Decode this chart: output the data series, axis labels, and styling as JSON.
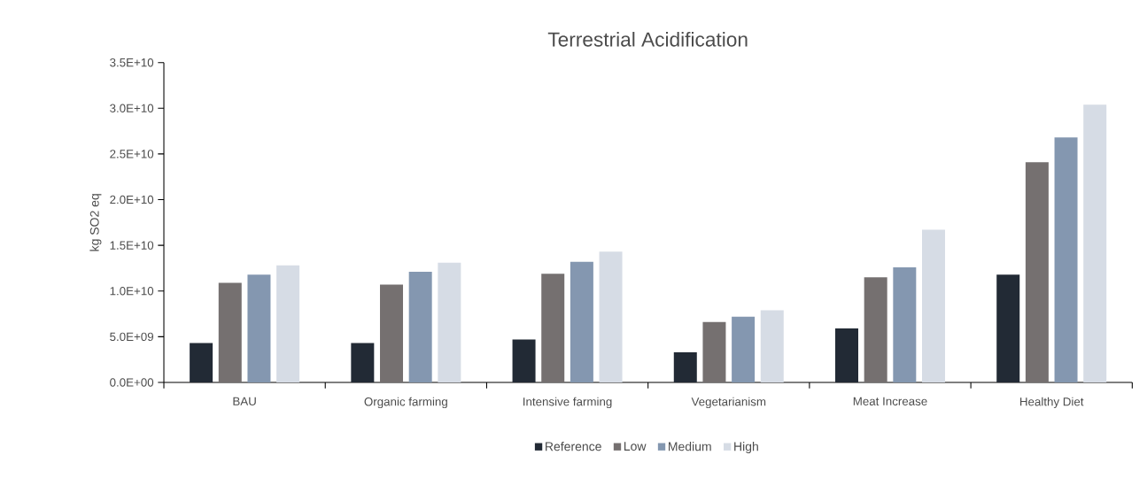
{
  "chart_data": {
    "type": "bar",
    "title": "Terrestrial Acidification",
    "ylabel": "kg SO2 eq",
    "categories": [
      "BAU",
      "Organic farming",
      "Intensive farming",
      "Vegetarianism",
      "Meat Increase",
      "Healthy Diet"
    ],
    "series": [
      {
        "name": "Reference",
        "color": "#222a35",
        "values": [
          4300000000.0,
          4300000000.0,
          4700000000.0,
          3300000000.0,
          5900000000.0,
          11800000000.0
        ]
      },
      {
        "name": "Low",
        "color": "#757070",
        "values": [
          10900000000.0,
          10700000000.0,
          11900000000.0,
          6600000000.0,
          11500000000.0,
          24100000000.0
        ]
      },
      {
        "name": "Medium",
        "color": "#8497b0",
        "values": [
          11800000000.0,
          12100000000.0,
          13200000000.0,
          7200000000.0,
          12600000000.0,
          26800000000.0
        ]
      },
      {
        "name": "High",
        "color": "#d6dce5",
        "values": [
          12800000000.0,
          13100000000.0,
          14300000000.0,
          7900000000.0,
          16700000000.0,
          30400000000.0
        ]
      }
    ],
    "ylim": [
      0,
      35000000000.0
    ],
    "yticks": [
      {
        "value": 0,
        "label": "0.0E+00"
      },
      {
        "value": 5000000000.0,
        "label": "5.0E+09"
      },
      {
        "value": 10000000000.0,
        "label": "1.0E+10"
      },
      {
        "value": 15000000000.0,
        "label": "1.5E+10"
      },
      {
        "value": 20000000000.0,
        "label": "2.0E+10"
      },
      {
        "value": 25000000000.0,
        "label": "2.5E+10"
      },
      {
        "value": 30000000000.0,
        "label": "3.0E+10"
      },
      {
        "value": 35000000000.0,
        "label": "3.5E+10"
      }
    ],
    "legend": "bottom"
  }
}
